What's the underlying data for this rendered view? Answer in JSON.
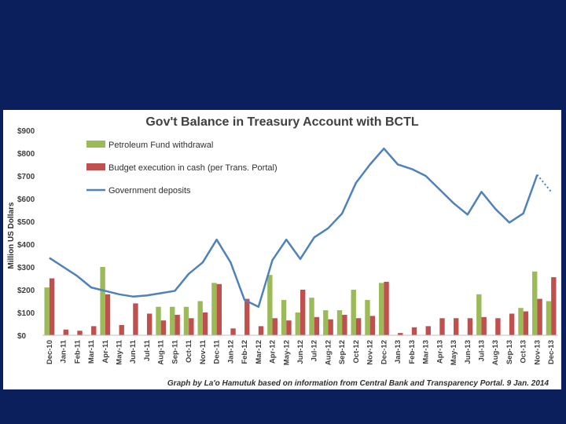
{
  "chart_data": {
    "type": "bar",
    "title": "Gov't Balance in Treasury Account with BCTL",
    "ylabel": "Million US Dollars",
    "ylim": [
      0,
      900
    ],
    "yticks": [
      "$0",
      "$100",
      "$200",
      "$300",
      "$400",
      "$500",
      "$600",
      "$700",
      "$800",
      "$900"
    ],
    "grid": false,
    "legend_placement": "top-left",
    "categories": [
      "Dec-10",
      "Jan-11",
      "Feb-11",
      "Mar-11",
      "Apr-11",
      "May-11",
      "Jun-11",
      "Jul-11",
      "Aug-11",
      "Sep-11",
      "Oct-11",
      "Nov-11",
      "Dec-11",
      "Jan-12",
      "Feb-12",
      "Mar-12",
      "Apr-12",
      "May-12",
      "Jun-12",
      "Jul-12",
      "Aug-12",
      "Sep-12",
      "Oct-12",
      "Nov-12",
      "Dec-12",
      "Jan-13",
      "Feb-13",
      "Mar-13",
      "Apr-13",
      "May-13",
      "Jun-13",
      "Jul-13",
      "Aug-13",
      "Sep-13",
      "Oct-13",
      "Nov-13",
      "Dec-13"
    ],
    "series": [
      {
        "name": "Petroleum Fund withdrawal",
        "kind": "bar",
        "color": "#9bbb59",
        "values": [
          210,
          0,
          0,
          0,
          300,
          0,
          0,
          0,
          125,
          125,
          125,
          150,
          230,
          0,
          0,
          0,
          265,
          155,
          100,
          165,
          110,
          110,
          200,
          155,
          230,
          0,
          0,
          0,
          0,
          0,
          0,
          180,
          0,
          0,
          120,
          280,
          150
        ]
      },
      {
        "name": "Budget execution in cash (per Trans. Portal)",
        "kind": "bar",
        "color": "#c0504d",
        "values": [
          250,
          25,
          20,
          40,
          180,
          45,
          140,
          95,
          65,
          90,
          75,
          100,
          225,
          30,
          160,
          40,
          75,
          65,
          200,
          80,
          70,
          90,
          75,
          85,
          235,
          10,
          35,
          40,
          75,
          75,
          75,
          80,
          75,
          95,
          105,
          160,
          255
        ]
      },
      {
        "name": "Government deposits",
        "kind": "line",
        "color": "#4f81bd",
        "values": [
          340,
          300,
          260,
          210,
          195,
          180,
          170,
          175,
          185,
          195,
          270,
          320,
          420,
          320,
          155,
          125,
          330,
          420,
          335,
          430,
          470,
          535,
          670,
          750,
          820,
          750,
          730,
          700,
          640,
          580,
          530,
          630,
          555,
          495,
          535,
          705,
          630
        ],
        "projected_from_index": 35
      }
    ]
  },
  "credit": "Graph by La'o Hamutuk based on information from Central Bank and Transparency Portal.   9 Jan. 2014"
}
